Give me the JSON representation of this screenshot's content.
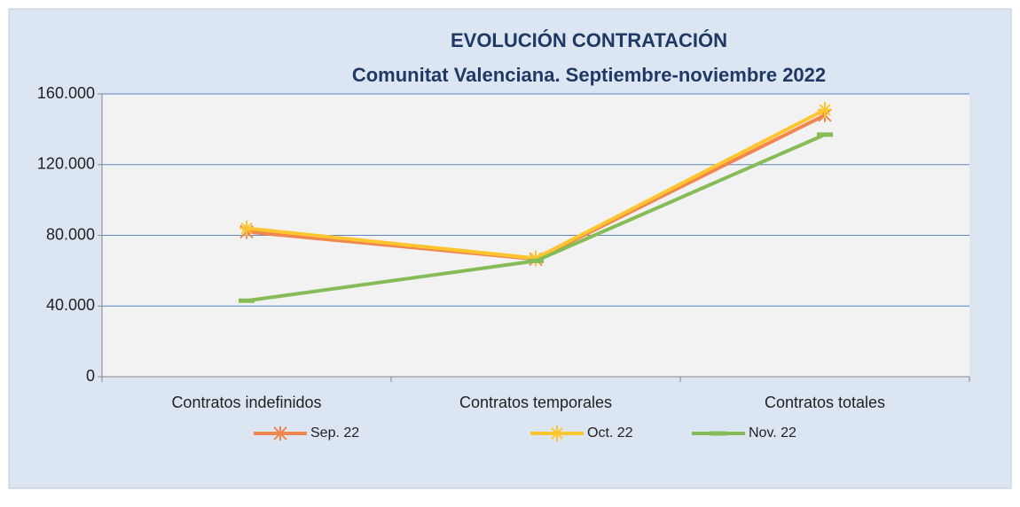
{
  "chart_data": {
    "type": "line",
    "title": "EVOLUCIÓN CONTRATACIÓN",
    "subtitle": "Comunitat Valenciana. Septiembre-noviembre 2022",
    "categories": [
      "Contratos indefinidos",
      "Contratos temporales",
      "Contratos totales"
    ],
    "series": [
      {
        "name": "Sep. 22",
        "color": "#f0874f",
        "marker": "asterisk",
        "values": [
          82000,
          66500,
          148000
        ]
      },
      {
        "name": "Oct. 22",
        "color": "#ffc52e",
        "marker": "plus",
        "values": [
          84000,
          67000,
          151000
        ]
      },
      {
        "name": "Nov. 22",
        "color": "#86bc58",
        "marker": "dash",
        "values": [
          43000,
          65500,
          137000
        ]
      }
    ],
    "ylim": [
      0,
      160000
    ],
    "yticks": [
      0,
      {
        "value": 40000,
        "label": "40.000"
      },
      {
        "value": 80000,
        "label": "80.000"
      },
      {
        "value": 120000,
        "label": "120.000"
      },
      {
        "value": 160000,
        "label": "160.000"
      }
    ],
    "grid": true,
    "legend": "bottom"
  }
}
